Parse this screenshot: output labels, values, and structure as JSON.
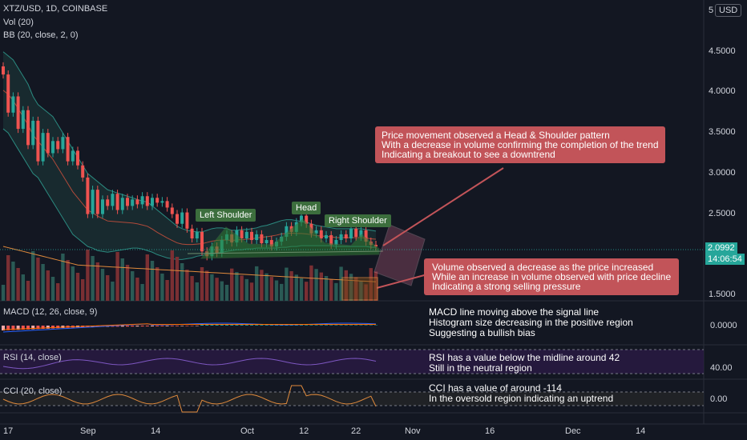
{
  "header": {
    "symbol_line": "XTZ/USD, 1D, COINBASE",
    "vol_line": "Vol (20)",
    "bb_line": "BB (20, close, 2, 0)",
    "currency": "USD"
  },
  "price_axis": {
    "ticks": [
      "5",
      "4.5000",
      "4.0000",
      "3.5000",
      "3.0000",
      "2.5000",
      "1.5000"
    ],
    "last_price": "2.0992",
    "countdown": "14:06:54"
  },
  "time_axis": {
    "ticks": [
      "17",
      "Sep",
      "14",
      "Oct",
      "12",
      "22",
      "Nov",
      "16",
      "Dec",
      "14"
    ]
  },
  "pattern_labels": {
    "left": "Left Shoulder",
    "head": "Head",
    "right": "Right Shoulder"
  },
  "callouts": {
    "top": [
      "Price movement observed a Head & Shoulder pattern",
      "With a decrease in volume confirming the completion of the trend",
      "Indicating a breakout to see a downtrend"
    ],
    "volume": [
      "Volume observed a decrease as the price increased",
      "While an increase in volume observed with price decline",
      "Indicating a strong selling pressure"
    ]
  },
  "macd": {
    "title": "MACD (12, 26, close, 9)",
    "axis_label": "0.0000",
    "notes": [
      "MACD line moving above the signal line",
      "Histogram size decreasing in the positive region",
      "Suggesting a bullish bias"
    ]
  },
  "rsi": {
    "title": "RSI (14, close)",
    "axis_label": "40.00",
    "notes": [
      "RSI has a value below the midline around 42",
      "Still in the neutral region"
    ]
  },
  "cci": {
    "title": "CCI (20, close)",
    "axis_label": "0.00",
    "notes": [
      "CCI has a value of around -114",
      "In the oversold region indicating an uptrend"
    ]
  },
  "colors": {
    "up": "#26a69a",
    "down": "#ef5350",
    "bg": "#131722",
    "callout": "#c25459",
    "tag": "#3c6e3d"
  },
  "chart_data": {
    "type": "candlestick",
    "ylim": [
      1.5,
      5.0
    ],
    "close": [
      4.22,
      3.75,
      3.95,
      3.55,
      3.78,
      3.35,
      3.65,
      3.15,
      3.5,
      3.25,
      3.4,
      3.3,
      3.45,
      3.15,
      3.28,
      3.1,
      2.95,
      2.5,
      2.8,
      2.5,
      2.68,
      2.6,
      2.75,
      2.55,
      2.7,
      2.6,
      2.68,
      2.62,
      2.72,
      2.6,
      2.7,
      2.64,
      2.66,
      2.58,
      2.5,
      2.38,
      2.52,
      2.32,
      2.2,
      2.28,
      2.04,
      1.98,
      2.1,
      2.02,
      2.18,
      2.25,
      2.15,
      2.3,
      2.2,
      2.28,
      2.18,
      2.25,
      2.14,
      2.18,
      2.1,
      2.16,
      2.22,
      2.35,
      2.28,
      2.4,
      2.48,
      2.38,
      2.26,
      2.3,
      2.2,
      2.24,
      2.12,
      2.18,
      2.25,
      2.2,
      2.32,
      2.22,
      2.3,
      2.16,
      2.12,
      2.1
    ],
    "bb_upper": [
      4.5,
      4.45,
      4.4,
      4.3,
      4.2,
      4.1,
      3.95,
      3.85,
      3.8,
      3.75,
      3.7,
      3.6,
      3.5,
      3.4,
      3.3,
      3.2,
      3.1,
      3.0,
      2.95,
      2.9,
      2.85,
      2.8,
      2.78,
      2.76,
      2.74,
      2.72,
      2.7,
      2.68,
      2.66,
      2.65,
      2.6,
      2.55,
      2.5,
      2.45,
      2.4,
      2.35,
      2.32,
      2.3,
      2.29,
      2.28,
      2.28,
      2.3,
      2.32,
      2.33,
      2.33,
      2.32,
      2.3,
      2.3,
      2.31,
      2.31,
      2.32,
      2.33,
      2.35,
      2.36,
      2.38,
      2.4,
      2.42,
      2.43,
      2.43,
      2.42,
      2.41,
      2.4,
      2.38,
      2.36,
      2.35,
      2.34,
      2.33,
      2.32,
      2.32,
      2.32,
      2.32,
      2.32,
      2.32,
      2.31,
      2.3,
      2.29
    ],
    "bb_lower": [
      3.55,
      3.5,
      3.4,
      3.3,
      3.2,
      3.1,
      3.0,
      2.95,
      2.85,
      2.75,
      2.65,
      2.55,
      2.45,
      2.35,
      2.25,
      2.2,
      2.15,
      2.1,
      2.08,
      2.05,
      2.04,
      2.03,
      2.04,
      2.05,
      2.06,
      2.07,
      2.08,
      2.08,
      2.07,
      2.05,
      2.03,
      2.0,
      1.98,
      1.96,
      1.95,
      1.94,
      1.94,
      1.95,
      1.96,
      1.98,
      1.99,
      2.0,
      2.01,
      2.02,
      2.03,
      2.04,
      2.05,
      2.06,
      2.06,
      2.07,
      2.07,
      2.08,
      2.08,
      2.08,
      2.08,
      2.08,
      2.09,
      2.09,
      2.1,
      2.1,
      2.11,
      2.11,
      2.11,
      2.11,
      2.11,
      2.11,
      2.11,
      2.1,
      2.1,
      2.1,
      2.1,
      2.1,
      2.1,
      2.1,
      2.09,
      2.09
    ]
  }
}
